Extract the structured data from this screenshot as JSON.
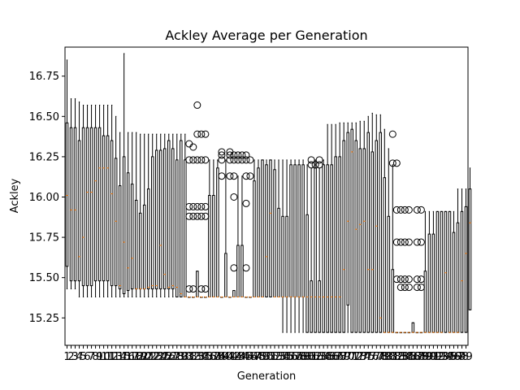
{
  "chart_data": {
    "type": "boxplot",
    "title": "Ackley Average per Generation",
    "xlabel": "Generation",
    "ylabel": "Ackley",
    "ylim": [
      15.08,
      16.93
    ],
    "yticks": [
      15.25,
      15.5,
      15.75,
      16.0,
      16.25,
      16.5,
      16.75
    ],
    "ytick_labels": [
      "15.25",
      "15.50",
      "15.75",
      "16.00",
      "16.25",
      "16.50",
      "16.75"
    ],
    "grid": false,
    "colors": {
      "box": "#000000",
      "median": "#ff7f0e",
      "background": "#ffffff"
    },
    "x": [
      1,
      2,
      3,
      4,
      5,
      6,
      7,
      8,
      9,
      10,
      11,
      12,
      13,
      14,
      15,
      16,
      17,
      18,
      19,
      20,
      21,
      22,
      23,
      24,
      25,
      26,
      27,
      28,
      29,
      30,
      31,
      32,
      33,
      34,
      35,
      36,
      37,
      38,
      39,
      40,
      41,
      42,
      43,
      44,
      45,
      46,
      47,
      48,
      49,
      50,
      51,
      52,
      53,
      54,
      55,
      56,
      57,
      58,
      59,
      60,
      61,
      62,
      63,
      64,
      65,
      66,
      67,
      68,
      69,
      70,
      71,
      72,
      73,
      74,
      75,
      76,
      77,
      78,
      79,
      80,
      81,
      82,
      83,
      84,
      85,
      86,
      87,
      88,
      89,
      90,
      91,
      92,
      93,
      94,
      95,
      96,
      97,
      98,
      99
    ],
    "boxes": [
      {
        "wl": 15.43,
        "q1": 15.57,
        "med": 16.01,
        "q3": 16.46,
        "wh": 16.85,
        "fliers": []
      },
      {
        "wl": 15.43,
        "q1": 15.48,
        "med": 15.92,
        "q3": 16.43,
        "wh": 16.61,
        "fliers": []
      },
      {
        "wl": 15.43,
        "q1": 15.48,
        "med": 15.92,
        "q3": 16.43,
        "wh": 16.61,
        "fliers": []
      },
      {
        "wl": 15.38,
        "q1": 15.48,
        "med": 15.63,
        "q3": 16.35,
        "wh": 16.59,
        "fliers": []
      },
      {
        "wl": 15.38,
        "q1": 15.45,
        "med": 15.75,
        "q3": 16.43,
        "wh": 16.57,
        "fliers": []
      },
      {
        "wl": 15.38,
        "q1": 15.45,
        "med": 16.03,
        "q3": 16.43,
        "wh": 16.57,
        "fliers": []
      },
      {
        "wl": 15.38,
        "q1": 15.45,
        "med": 16.03,
        "q3": 16.43,
        "wh": 16.57,
        "fliers": []
      },
      {
        "wl": 15.38,
        "q1": 15.48,
        "med": 16.1,
        "q3": 16.43,
        "wh": 16.57,
        "fliers": []
      },
      {
        "wl": 15.38,
        "q1": 15.48,
        "med": 16.18,
        "q3": 16.43,
        "wh": 16.57,
        "fliers": []
      },
      {
        "wl": 15.38,
        "q1": 15.48,
        "med": 16.18,
        "q3": 16.38,
        "wh": 16.57,
        "fliers": []
      },
      {
        "wl": 15.38,
        "q1": 15.48,
        "med": 16.18,
        "q3": 16.38,
        "wh": 16.57,
        "fliers": []
      },
      {
        "wl": 15.38,
        "q1": 15.45,
        "med": 16.02,
        "q3": 16.35,
        "wh": 16.57,
        "fliers": []
      },
      {
        "wl": 15.38,
        "q1": 15.45,
        "med": 15.85,
        "q3": 16.24,
        "wh": 16.5,
        "fliers": []
      },
      {
        "wl": 15.38,
        "q1": 15.43,
        "med": 15.45,
        "q3": 16.07,
        "wh": 16.4,
        "fliers": []
      },
      {
        "wl": 15.38,
        "q1": 15.4,
        "med": 15.72,
        "q3": 16.25,
        "wh": 16.89,
        "fliers": []
      },
      {
        "wl": 15.38,
        "q1": 15.42,
        "med": 15.56,
        "q3": 16.15,
        "wh": 16.4,
        "fliers": []
      },
      {
        "wl": 15.38,
        "q1": 15.43,
        "med": 15.62,
        "q3": 16.08,
        "wh": 16.4,
        "fliers": []
      },
      {
        "wl": 15.38,
        "q1": 15.43,
        "med": 15.43,
        "q3": 15.98,
        "wh": 16.4,
        "fliers": []
      },
      {
        "wl": 15.38,
        "q1": 15.43,
        "med": 15.43,
        "q3": 15.9,
        "wh": 16.39,
        "fliers": []
      },
      {
        "wl": 15.38,
        "q1": 15.43,
        "med": 15.43,
        "q3": 15.95,
        "wh": 16.39,
        "fliers": []
      },
      {
        "wl": 15.38,
        "q1": 15.43,
        "med": 15.44,
        "q3": 16.05,
        "wh": 16.39,
        "fliers": []
      },
      {
        "wl": 15.38,
        "q1": 15.43,
        "med": 15.45,
        "q3": 16.25,
        "wh": 16.39,
        "fliers": []
      },
      {
        "wl": 15.38,
        "q1": 15.43,
        "med": 15.45,
        "q3": 16.29,
        "wh": 16.39,
        "fliers": []
      },
      {
        "wl": 15.38,
        "q1": 15.43,
        "med": 15.7,
        "q3": 16.29,
        "wh": 16.39,
        "fliers": []
      },
      {
        "wl": 15.38,
        "q1": 15.43,
        "med": 15.52,
        "q3": 16.3,
        "wh": 16.39,
        "fliers": []
      },
      {
        "wl": 15.38,
        "q1": 15.43,
        "med": 15.44,
        "q3": 16.35,
        "wh": 16.39,
        "fliers": []
      },
      {
        "wl": 15.38,
        "q1": 15.43,
        "med": 15.45,
        "q3": 16.3,
        "wh": 16.39,
        "fliers": []
      },
      {
        "wl": 15.38,
        "q1": 15.38,
        "med": 15.44,
        "q3": 16.23,
        "wh": 16.39,
        "fliers": []
      },
      {
        "wl": 15.38,
        "q1": 15.38,
        "med": 15.4,
        "q3": 16.35,
        "wh": 16.39,
        "fliers": []
      },
      {
        "wl": 15.38,
        "q1": 15.38,
        "med": 15.38,
        "q3": 16.23,
        "wh": 16.39,
        "fliers": []
      },
      {
        "wl": 15.38,
        "q1": 15.38,
        "med": 15.38,
        "q3": 15.38,
        "wh": 15.38,
        "fliers": [
          15.43,
          15.88,
          15.94,
          16.23,
          16.33
        ]
      },
      {
        "wl": 15.38,
        "q1": 15.38,
        "med": 15.38,
        "q3": 15.38,
        "wh": 15.38,
        "fliers": [
          15.43,
          15.88,
          15.94,
          16.23,
          16.31
        ]
      },
      {
        "wl": 15.38,
        "q1": 15.38,
        "med": 15.38,
        "q3": 15.54,
        "wh": 15.54,
        "fliers": [
          15.88,
          15.94,
          16.23,
          16.39,
          16.57
        ]
      },
      {
        "wl": 15.38,
        "q1": 15.38,
        "med": 15.38,
        "q3": 15.38,
        "wh": 15.38,
        "fliers": [
          15.43,
          15.88,
          15.94,
          16.23,
          16.39
        ]
      },
      {
        "wl": 15.38,
        "q1": 15.38,
        "med": 15.38,
        "q3": 15.38,
        "wh": 15.38,
        "fliers": [
          15.43,
          15.88,
          15.94,
          16.23,
          16.39
        ]
      },
      {
        "wl": 15.38,
        "q1": 15.38,
        "med": 15.38,
        "q3": 16.01,
        "wh": 16.23,
        "fliers": []
      },
      {
        "wl": 15.38,
        "q1": 15.38,
        "med": 15.38,
        "q3": 16.01,
        "wh": 16.23,
        "fliers": []
      },
      {
        "wl": 15.38,
        "q1": 15.38,
        "med": 15.38,
        "q3": 16.18,
        "wh": 16.23,
        "fliers": []
      },
      {
        "wl": 15.38,
        "q1": 15.38,
        "med": 15.38,
        "q3": 15.38,
        "wh": 15.38,
        "fliers": [
          16.13,
          16.23,
          16.26,
          16.28
        ]
      },
      {
        "wl": 15.38,
        "q1": 15.38,
        "med": 15.38,
        "q3": 15.65,
        "wh": 16.23,
        "fliers": []
      },
      {
        "wl": 15.38,
        "q1": 15.38,
        "med": 15.38,
        "q3": 15.38,
        "wh": 15.38,
        "fliers": [
          16.13,
          16.23,
          16.26,
          16.28
        ]
      },
      {
        "wl": 15.38,
        "q1": 15.38,
        "med": 15.38,
        "q3": 15.42,
        "wh": 15.42,
        "fliers": [
          15.56,
          16.0,
          16.13,
          16.23,
          16.26
        ]
      },
      {
        "wl": 15.38,
        "q1": 15.38,
        "med": 15.38,
        "q3": 15.7,
        "wh": 16.13,
        "fliers": [
          16.23,
          16.26
        ]
      },
      {
        "wl": 15.38,
        "q1": 15.38,
        "med": 15.38,
        "q3": 15.7,
        "wh": 16.13,
        "fliers": [
          16.23,
          16.26
        ]
      },
      {
        "wl": 15.38,
        "q1": 15.38,
        "med": 15.38,
        "q3": 15.38,
        "wh": 15.38,
        "fliers": [
          15.56,
          15.96,
          16.13,
          16.23,
          16.26
        ]
      },
      {
        "wl": 15.38,
        "q1": 15.38,
        "med": 15.38,
        "q3": 15.38,
        "wh": 15.38,
        "fliers": [
          16.13,
          16.23
        ]
      },
      {
        "wl": 15.38,
        "q1": 15.38,
        "med": 15.38,
        "q3": 16.1,
        "wh": 16.23,
        "fliers": []
      },
      {
        "wl": 15.38,
        "q1": 15.38,
        "med": 15.38,
        "q3": 16.18,
        "wh": 16.23,
        "fliers": []
      },
      {
        "wl": 15.38,
        "q1": 15.38,
        "med": 15.38,
        "q3": 16.23,
        "wh": 16.23,
        "fliers": []
      },
      {
        "wl": 15.38,
        "q1": 15.38,
        "med": 15.63,
        "q3": 16.2,
        "wh": 16.23,
        "fliers": []
      },
      {
        "wl": 15.38,
        "q1": 15.38,
        "med": 15.9,
        "q3": 16.23,
        "wh": 16.23,
        "fliers": []
      },
      {
        "wl": 15.38,
        "q1": 15.38,
        "med": 15.38,
        "q3": 16.17,
        "wh": 16.23,
        "fliers": []
      },
      {
        "wl": 15.38,
        "q1": 15.38,
        "med": 15.38,
        "q3": 15.93,
        "wh": 16.23,
        "fliers": []
      },
      {
        "wl": 15.16,
        "q1": 15.38,
        "med": 15.38,
        "q3": 15.88,
        "wh": 16.23,
        "fliers": []
      },
      {
        "wl": 15.16,
        "q1": 15.38,
        "med": 15.38,
        "q3": 15.88,
        "wh": 16.23,
        "fliers": []
      },
      {
        "wl": 15.16,
        "q1": 15.38,
        "med": 15.38,
        "q3": 16.2,
        "wh": 16.23,
        "fliers": []
      },
      {
        "wl": 15.16,
        "q1": 15.38,
        "med": 15.38,
        "q3": 16.2,
        "wh": 16.23,
        "fliers": []
      },
      {
        "wl": 15.16,
        "q1": 15.38,
        "med": 15.38,
        "q3": 16.2,
        "wh": 16.23,
        "fliers": []
      },
      {
        "wl": 15.16,
        "q1": 15.38,
        "med": 15.38,
        "q3": 16.2,
        "wh": 16.23,
        "fliers": []
      },
      {
        "wl": 15.16,
        "q1": 15.16,
        "med": 15.38,
        "q3": 15.89,
        "wh": 16.2,
        "fliers": []
      },
      {
        "wl": 15.16,
        "q1": 15.16,
        "med": 15.38,
        "q3": 15.48,
        "wh": 16.18,
        "fliers": [
          16.2,
          16.23
        ]
      },
      {
        "wl": 15.16,
        "q1": 15.16,
        "med": 15.38,
        "q3": 16.18,
        "wh": 16.23,
        "fliers": [
          16.2
        ]
      },
      {
        "wl": 15.16,
        "q1": 15.16,
        "med": 15.38,
        "q3": 15.48,
        "wh": 16.18,
        "fliers": [
          16.2,
          16.23
        ]
      },
      {
        "wl": 15.16,
        "q1": 15.16,
        "med": 15.38,
        "q3": 16.2,
        "wh": 16.23,
        "fliers": []
      },
      {
        "wl": 15.16,
        "q1": 15.16,
        "med": 15.38,
        "q3": 16.2,
        "wh": 16.45,
        "fliers": []
      },
      {
        "wl": 15.16,
        "q1": 15.16,
        "med": 15.38,
        "q3": 16.2,
        "wh": 16.45,
        "fliers": []
      },
      {
        "wl": 15.16,
        "q1": 15.16,
        "med": 15.38,
        "q3": 16.25,
        "wh": 16.45,
        "fliers": []
      },
      {
        "wl": 15.16,
        "q1": 15.16,
        "med": 15.38,
        "q3": 16.25,
        "wh": 16.46,
        "fliers": []
      },
      {
        "wl": 15.16,
        "q1": 15.16,
        "med": 15.55,
        "q3": 16.35,
        "wh": 16.46,
        "fliers": []
      },
      {
        "wl": 15.16,
        "q1": 15.33,
        "med": 15.85,
        "q3": 16.4,
        "wh": 16.46,
        "fliers": []
      },
      {
        "wl": 15.16,
        "q1": 15.16,
        "med": 16.28,
        "q3": 16.42,
        "wh": 16.46,
        "fliers": []
      },
      {
        "wl": 15.16,
        "q1": 15.16,
        "med": 15.8,
        "q3": 16.35,
        "wh": 16.46,
        "fliers": []
      },
      {
        "wl": 15.16,
        "q1": 15.16,
        "med": 15.83,
        "q3": 16.3,
        "wh": 16.47,
        "fliers": []
      },
      {
        "wl": 15.16,
        "q1": 15.16,
        "med": 15.85,
        "q3": 16.3,
        "wh": 16.47,
        "fliers": []
      },
      {
        "wl": 15.16,
        "q1": 15.16,
        "med": 15.55,
        "q3": 16.4,
        "wh": 16.5,
        "fliers": []
      },
      {
        "wl": 15.16,
        "q1": 15.16,
        "med": 15.55,
        "q3": 16.28,
        "wh": 16.52,
        "fliers": []
      },
      {
        "wl": 15.16,
        "q1": 15.16,
        "med": 15.82,
        "q3": 16.35,
        "wh": 16.51,
        "fliers": []
      },
      {
        "wl": 15.16,
        "q1": 15.16,
        "med": 15.25,
        "q3": 16.4,
        "wh": 16.51,
        "fliers": []
      },
      {
        "wl": 15.16,
        "q1": 15.16,
        "med": 15.16,
        "q3": 16.12,
        "wh": 16.42,
        "fliers": []
      },
      {
        "wl": 15.16,
        "q1": 15.16,
        "med": 15.16,
        "q3": 15.88,
        "wh": 16.3,
        "fliers": []
      },
      {
        "wl": 15.16,
        "q1": 15.16,
        "med": 15.16,
        "q3": 15.55,
        "wh": 16.2,
        "fliers": [
          16.39,
          16.21
        ]
      },
      {
        "wl": 15.16,
        "q1": 15.16,
        "med": 15.16,
        "q3": 15.16,
        "wh": 15.16,
        "fliers": [
          15.49,
          15.72,
          15.92,
          16.21
        ]
      },
      {
        "wl": 15.16,
        "q1": 15.16,
        "med": 15.16,
        "q3": 15.16,
        "wh": 15.16,
        "fliers": [
          15.44,
          15.49,
          15.72,
          15.92
        ]
      },
      {
        "wl": 15.16,
        "q1": 15.16,
        "med": 15.16,
        "q3": 15.16,
        "wh": 15.16,
        "fliers": [
          15.44,
          15.49,
          15.72,
          15.92
        ]
      },
      {
        "wl": 15.16,
        "q1": 15.16,
        "med": 15.16,
        "q3": 15.16,
        "wh": 15.16,
        "fliers": [
          15.44,
          15.49,
          15.72,
          15.92
        ]
      },
      {
        "wl": 15.16,
        "q1": 15.16,
        "med": 15.16,
        "q3": 15.22,
        "wh": 15.22,
        "fliers": []
      },
      {
        "wl": 15.16,
        "q1": 15.16,
        "med": 15.16,
        "q3": 15.16,
        "wh": 15.16,
        "fliers": [
          15.44,
          15.49,
          15.72,
          15.92
        ]
      },
      {
        "wl": 15.16,
        "q1": 15.16,
        "med": 15.16,
        "q3": 15.16,
        "wh": 15.16,
        "fliers": [
          15.44,
          15.49,
          15.72,
          15.92
        ]
      },
      {
        "wl": 15.16,
        "q1": 15.16,
        "med": 15.16,
        "q3": 15.54,
        "wh": 15.91,
        "fliers": []
      },
      {
        "wl": 15.16,
        "q1": 15.16,
        "med": 15.16,
        "q3": 15.77,
        "wh": 15.91,
        "fliers": []
      },
      {
        "wl": 15.16,
        "q1": 15.16,
        "med": 15.16,
        "q3": 15.77,
        "wh": 15.91,
        "fliers": []
      },
      {
        "wl": 15.16,
        "q1": 15.16,
        "med": 15.16,
        "q3": 15.91,
        "wh": 15.91,
        "fliers": []
      },
      {
        "wl": 15.16,
        "q1": 15.16,
        "med": 15.16,
        "q3": 15.91,
        "wh": 15.91,
        "fliers": []
      },
      {
        "wl": 15.16,
        "q1": 15.16,
        "med": 15.53,
        "q3": 15.91,
        "wh": 15.91,
        "fliers": []
      },
      {
        "wl": 15.16,
        "q1": 15.16,
        "med": 15.16,
        "q3": 15.91,
        "wh": 15.91,
        "fliers": []
      },
      {
        "wl": 15.16,
        "q1": 15.16,
        "med": 15.16,
        "q3": 15.78,
        "wh": 15.91,
        "fliers": []
      },
      {
        "wl": 15.16,
        "q1": 15.16,
        "med": 15.16,
        "q3": 15.84,
        "wh": 16.05,
        "fliers": []
      },
      {
        "wl": 15.16,
        "q1": 15.16,
        "med": 15.48,
        "q3": 15.91,
        "wh": 16.05,
        "fliers": []
      },
      {
        "wl": 15.16,
        "q1": 15.16,
        "med": 15.65,
        "q3": 15.94,
        "wh": 16.05,
        "fliers": []
      },
      {
        "wl": 15.3,
        "q1": 15.3,
        "med": 15.84,
        "q3": 16.05,
        "wh": 16.18,
        "fliers": []
      }
    ]
  }
}
